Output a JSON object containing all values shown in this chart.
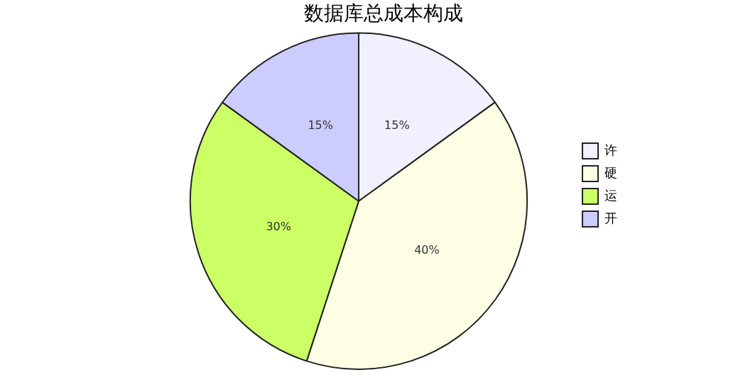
{
  "chart_data": {
    "type": "pie",
    "title": "数据库总成本构成",
    "categories": [
      "许",
      "硬",
      "运",
      "开"
    ],
    "values": [
      15,
      40,
      30,
      15
    ],
    "value_labels": [
      "15%",
      "40%",
      "30%",
      "15%"
    ],
    "colors": [
      "#f0f0ff",
      "#ffffe6",
      "#ccff66",
      "#ccccff"
    ],
    "legend": "right"
  }
}
